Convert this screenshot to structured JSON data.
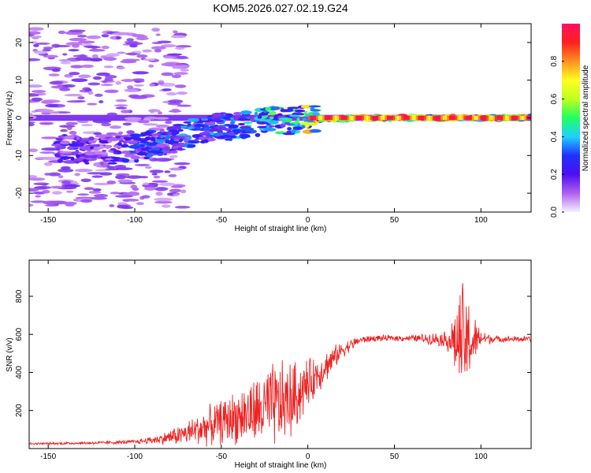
{
  "figure_title": "KOM5.2026.027.02.19.G24",
  "chart_data": [
    {
      "type": "heatmap",
      "title": "KOM5.2026.027.02.19.G24",
      "xlabel": "Height of straight line (km)",
      "ylabel": "Frequency (Hz)",
      "xlim": [
        -161,
        129
      ],
      "ylim": [
        -25,
        25
      ],
      "xticks": [
        -150,
        -100,
        -50,
        0,
        50,
        100
      ],
      "yticks": [
        -20,
        -10,
        0,
        10,
        20
      ],
      "colorbar": {
        "label": "Normalized spectral amplitude",
        "range": [
          0,
          1
        ],
        "ticks": [
          "0.0",
          "0.2",
          "0.4",
          "0.6",
          "0.8"
        ],
        "tick_values": [
          0.0,
          0.2,
          0.4,
          0.6,
          0.8
        ],
        "colormap": [
          "#f6f0ff",
          "#b060f0",
          "#4b10f0",
          "#2030ff",
          "#20d0ff",
          "#20ff60",
          "#c0ff20",
          "#ffff20",
          "#ff9020",
          "#ff2020",
          "#ff1060"
        ]
      },
      "ridge": {
        "description_points_x": [
          -140,
          -120,
          -100,
          -80,
          -60,
          -40,
          -20,
          -10,
          0,
          20,
          40,
          60,
          80,
          100,
          129
        ],
        "frequency": [
          -8,
          -9,
          -8,
          -6,
          -3,
          -2,
          -0.5,
          -0.8,
          -0.5,
          -0.2,
          0,
          0,
          0,
          0,
          0
        ],
        "amplitude": [
          0.25,
          0.2,
          0.3,
          0.35,
          0.35,
          0.4,
          0.5,
          0.45,
          0.75,
          0.9,
          0.95,
          0.9,
          0.95,
          0.95,
          0.95
        ]
      }
    },
    {
      "type": "line",
      "xlabel": "Height of straight line (km)",
      "ylabel": "SNR (v/v)",
      "xlim": [
        -161,
        129
      ],
      "ylim": [
        0,
        990
      ],
      "xticks": [
        -150,
        -100,
        -50,
        0,
        50,
        100
      ],
      "yticks": [
        200,
        400,
        600,
        800
      ],
      "color": "#ee2222",
      "envelope": {
        "x": [
          -161,
          -120,
          -100,
          -85,
          -70,
          -60,
          -50,
          -40,
          -30,
          -20,
          -10,
          0,
          10,
          20,
          30,
          40,
          60,
          80,
          85,
          90,
          95,
          100,
          110,
          129
        ],
        "mean": [
          25,
          30,
          35,
          50,
          80,
          110,
          140,
          170,
          190,
          220,
          250,
          340,
          430,
          520,
          570,
          580,
          580,
          575,
          560,
          555,
          560,
          580,
          575,
          575
        ],
        "spread": [
          5,
          8,
          10,
          25,
          60,
          90,
          110,
          140,
          170,
          220,
          200,
          120,
          80,
          40,
          20,
          15,
          15,
          40,
          160,
          320,
          150,
          40,
          15,
          15
        ]
      }
    }
  ]
}
